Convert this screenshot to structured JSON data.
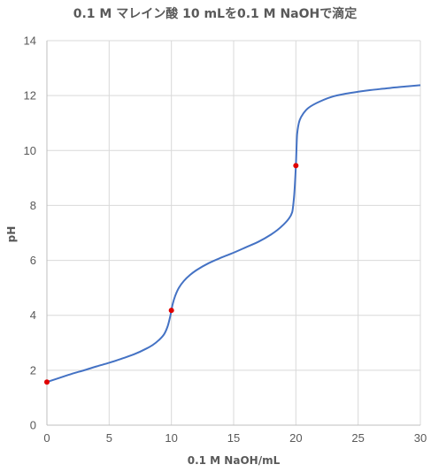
{
  "chart_data": {
    "type": "line",
    "title": "0.1 M マレイン酸 10 mLを0.1 M NaOHで滴定",
    "xlabel": "0.1 M NaOH/mL",
    "ylabel": "pH",
    "xlim": [
      0,
      30
    ],
    "ylim": [
      0,
      14
    ],
    "x_ticks": [
      "0",
      "5",
      "10",
      "15",
      "20",
      "25",
      "30"
    ],
    "y_ticks": [
      "0",
      "2",
      "4",
      "6",
      "8",
      "10",
      "12",
      "14"
    ],
    "grid": true,
    "legend": "none",
    "series": [
      {
        "color": "#4472c4",
        "x": [
          0,
          1,
          2,
          3,
          4,
          5,
          6,
          7,
          8,
          8.5,
          9,
          9.4,
          9.7,
          9.9,
          10,
          10.1,
          10.3,
          10.6,
          11,
          11.5,
          12,
          13,
          14,
          15,
          16,
          17,
          18,
          18.5,
          19,
          19.4,
          19.7,
          19.85,
          20,
          20.1,
          20.3,
          20.6,
          21,
          22,
          23,
          24,
          25,
          26,
          27,
          28,
          29,
          30
        ],
        "y": [
          1.57,
          1.72,
          1.87,
          2.0,
          2.14,
          2.27,
          2.42,
          2.58,
          2.79,
          2.92,
          3.1,
          3.3,
          3.6,
          3.95,
          4.18,
          4.4,
          4.7,
          5.0,
          5.25,
          5.47,
          5.64,
          5.9,
          6.1,
          6.28,
          6.48,
          6.68,
          6.94,
          7.1,
          7.3,
          7.5,
          7.75,
          8.3,
          9.45,
          10.6,
          11.1,
          11.35,
          11.55,
          11.8,
          11.97,
          12.07,
          12.14,
          12.2,
          12.25,
          12.3,
          12.34,
          12.38
        ]
      }
    ],
    "markers": {
      "color": "#e00000",
      "points": [
        {
          "x": 0,
          "y": 1.57
        },
        {
          "x": 10,
          "y": 4.18
        },
        {
          "x": 20,
          "y": 9.45
        }
      ]
    }
  }
}
